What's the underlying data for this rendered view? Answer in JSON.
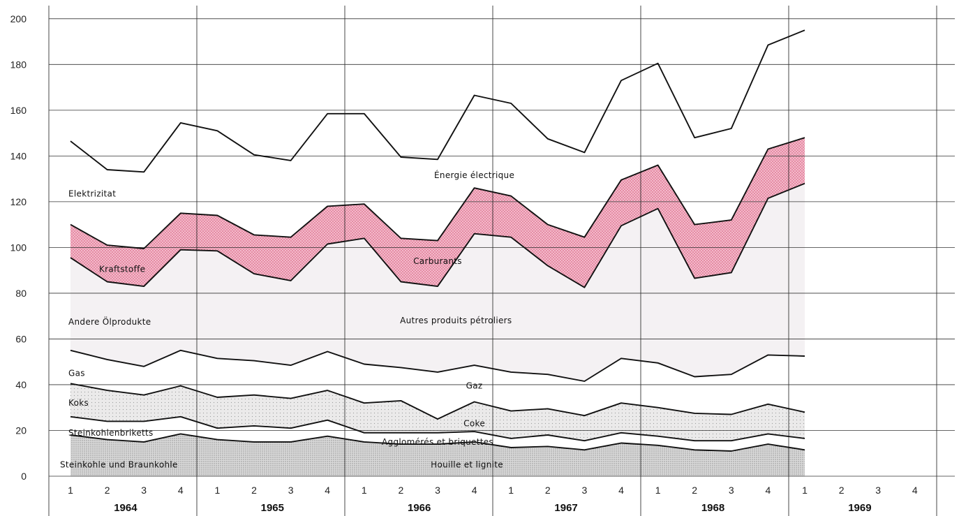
{
  "chart_data": {
    "type": "area",
    "ylim": [
      0,
      200
    ],
    "y_ticks": [
      0,
      20,
      40,
      60,
      80,
      100,
      120,
      140,
      160,
      180,
      200
    ],
    "years": [
      "1964",
      "1965",
      "1966",
      "1967",
      "1968",
      "1969"
    ],
    "quarters": [
      "1",
      "2",
      "3",
      "4"
    ],
    "x": [
      "1964 Q1",
      "1964 Q2",
      "1964 Q3",
      "1964 Q4",
      "1965 Q1",
      "1965 Q2",
      "1965 Q3",
      "1965 Q4",
      "1966 Q1",
      "1966 Q2",
      "1966 Q3",
      "1966 Q4",
      "1967 Q1",
      "1967 Q2",
      "1967 Q3",
      "1967 Q4",
      "1968 Q1",
      "1968 Q2",
      "1968 Q3",
      "1968 Q4",
      "1969 Q1"
    ],
    "grid": true,
    "boundaries": [
      {
        "id": "houille",
        "values": [
          18,
          16,
          15,
          18.5,
          16,
          15,
          15,
          17.5,
          15,
          14,
          14,
          15,
          12.5,
          13,
          11.5,
          14.5,
          13.5,
          11.5,
          11,
          14,
          11.5
        ]
      },
      {
        "id": "agglomeres",
        "values": [
          26,
          24,
          24,
          26,
          21,
          22,
          21,
          24.5,
          19,
          19,
          19,
          19.5,
          16.5,
          18,
          15.5,
          19,
          17.5,
          15.5,
          15.5,
          18.5,
          16.5
        ]
      },
      {
        "id": "coke",
        "values": [
          40.5,
          37.5,
          35.5,
          39.5,
          34.5,
          35.5,
          34,
          37.5,
          32,
          33,
          25,
          32.5,
          28.5,
          29.5,
          26.5,
          32,
          30,
          27.5,
          27,
          31.5,
          28
        ]
      },
      {
        "id": "gaz",
        "values": [
          55,
          51,
          48,
          55,
          51.5,
          50.5,
          48.5,
          54.5,
          49,
          47.5,
          45.5,
          48.5,
          45.5,
          44.5,
          41.5,
          51.5,
          49.5,
          43.5,
          44.5,
          53,
          52.5
        ]
      },
      {
        "id": "autres",
        "values": [
          95.5,
          85,
          83,
          99,
          98.5,
          88.5,
          85.5,
          101.5,
          104,
          85,
          83,
          106,
          104.5,
          92,
          82.5,
          109.5,
          117,
          86.5,
          89,
          121.5,
          128
        ]
      },
      {
        "id": "carburants",
        "values": [
          110,
          101,
          99.5,
          115,
          114,
          105.5,
          104.5,
          118,
          119,
          104,
          103,
          126,
          122.5,
          110,
          104.5,
          129.5,
          136,
          110,
          112,
          143,
          148
        ]
      },
      {
        "id": "electrique",
        "values": [
          146.5,
          134,
          133,
          154.5,
          151,
          140.5,
          138,
          158.5,
          158.5,
          139.5,
          138.5,
          166.5,
          163,
          147.5,
          141.5,
          173,
          180.5,
          148,
          152,
          188.5,
          195
        ]
      }
    ],
    "labels": [
      {
        "id": "elektrizitat",
        "text": "Elektrizitat",
        "q": 1,
        "y": 123.5
      },
      {
        "id": "energie-electrique",
        "text": "Énergie électrique",
        "q": 11,
        "y": 131.5
      },
      {
        "id": "kraftstoffe",
        "text": "Kraftstoffe",
        "q": 2,
        "y": 90.5
      },
      {
        "id": "carburants",
        "text": "Carburants",
        "q": 10,
        "y": 94
      },
      {
        "id": "andere-olprodukte",
        "text": "Andere Ölprodukte",
        "q": 1,
        "y": 67.5
      },
      {
        "id": "autres-produits",
        "text": "Autres produits pétroliers",
        "q": 10.5,
        "y": 68
      },
      {
        "id": "gas",
        "text": "Gas",
        "q": 1,
        "y": 45
      },
      {
        "id": "gaz",
        "text": "Gaz",
        "q": 11,
        "y": 39.5
      },
      {
        "id": "koks",
        "text": "Koks",
        "q": 1,
        "y": 32
      },
      {
        "id": "coke",
        "text": "Coke",
        "q": 11,
        "y": 23
      },
      {
        "id": "steinkohlenbriketts",
        "text": "Steinkohlenbriketts",
        "q": 2.1,
        "y": 19
      },
      {
        "id": "agglomeres",
        "text": "Agglomérés et briquettes",
        "q": 10,
        "y": 15
      },
      {
        "id": "steinkohle",
        "text": "Steinkohle und Braunkohle",
        "q": 2.7,
        "y": 5
      },
      {
        "id": "houille",
        "text": "Houille et lignite",
        "q": 10.8,
        "y": 5
      }
    ],
    "colors": {
      "line": "#111111",
      "grid": "#333333",
      "carburants_fill": "#f3b9cb",
      "carburants_dots": "#d2506f",
      "autres_fill": "#f4f1f3",
      "coke_fill": "#ebeaea",
      "houille_fill": "#d9d9d9",
      "dots": "#7a7a7a"
    }
  }
}
